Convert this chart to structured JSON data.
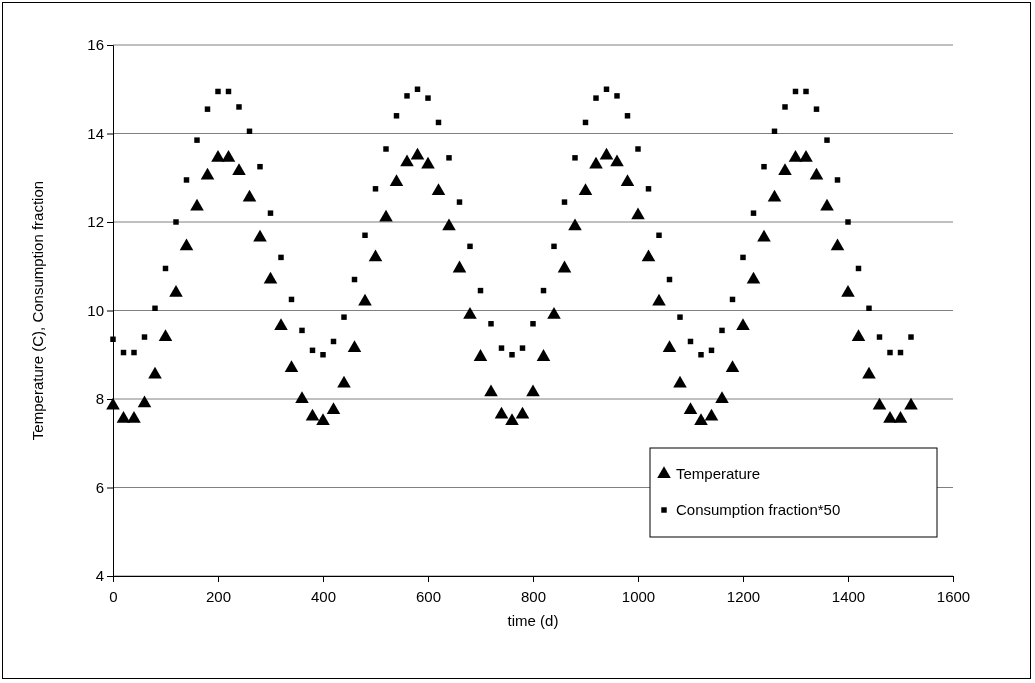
{
  "chart_data": {
    "type": "scatter",
    "xlabel": "time (d)",
    "ylabel": "Temperature (C), Consumption fraction",
    "x": [
      0,
      20,
      40,
      60,
      80,
      100,
      120,
      140,
      160,
      180,
      200,
      220,
      240,
      260,
      280,
      300,
      320,
      340,
      360,
      380,
      400,
      420,
      440,
      460,
      480,
      500,
      520,
      540,
      560,
      580,
      600,
      620,
      640,
      660,
      680,
      700,
      720,
      740,
      760,
      780,
      800,
      820,
      840,
      860,
      880,
      900,
      920,
      940,
      960,
      980,
      1000,
      1020,
      1040,
      1060,
      1080,
      1100,
      1120,
      1140,
      1160,
      1180,
      1200,
      1220,
      1240,
      1260,
      1280,
      1300,
      1320,
      1340,
      1360,
      1380,
      1400,
      1420,
      1440,
      1460,
      1480,
      1500,
      1520
    ],
    "series": [
      {
        "name": "Temperature",
        "color": "#000000",
        "marker": "triangle",
        "values": [
          7.85,
          7.55,
          7.55,
          7.9,
          8.55,
          9.4,
          10.4,
          11.45,
          12.35,
          13.05,
          13.45,
          13.45,
          13.15,
          12.55,
          11.65,
          10.7,
          9.65,
          8.7,
          8.0,
          7.6,
          7.5,
          7.75,
          8.35,
          9.15,
          10.2,
          11.2,
          12.1,
          12.9,
          13.35,
          13.5,
          13.3,
          12.7,
          11.9,
          10.95,
          9.9,
          8.95,
          8.15,
          7.65,
          7.5,
          7.65,
          8.15,
          8.95,
          9.9,
          10.95,
          11.9,
          12.7,
          13.3,
          13.5,
          13.35,
          12.9,
          12.15,
          11.2,
          10.2,
          9.15,
          8.35,
          7.75,
          7.5,
          7.6,
          8.0,
          8.7,
          9.65,
          10.7,
          11.65,
          12.55,
          13.15,
          13.45,
          13.45,
          13.05,
          12.35,
          11.45,
          10.4,
          9.4,
          8.55,
          7.85,
          7.55,
          7.55,
          7.85
        ]
      },
      {
        "name": "Consumption fraction*50",
        "color": "#000000",
        "marker": "square",
        "values": [
          9.35,
          9.05,
          9.05,
          9.4,
          10.05,
          10.95,
          12.0,
          12.95,
          13.85,
          14.55,
          14.95,
          14.95,
          14.6,
          14.05,
          13.25,
          12.2,
          11.2,
          10.25,
          9.55,
          9.1,
          9.0,
          9.3,
          9.85,
          10.7,
          11.7,
          12.75,
          13.65,
          14.4,
          14.85,
          15.0,
          14.8,
          14.25,
          13.45,
          12.45,
          11.45,
          10.45,
          9.7,
          9.15,
          9.0,
          9.15,
          9.7,
          10.45,
          11.45,
          12.45,
          13.45,
          14.25,
          14.8,
          15.0,
          14.85,
          14.4,
          13.65,
          12.75,
          11.7,
          10.7,
          9.85,
          9.3,
          9.0,
          9.1,
          9.55,
          10.25,
          11.2,
          12.2,
          13.25,
          14.05,
          14.6,
          14.95,
          14.95,
          14.55,
          13.85,
          12.95,
          12.0,
          10.95,
          10.05,
          9.4,
          9.05,
          9.05,
          9.4
        ]
      }
    ],
    "xlim": [
      0,
      1600
    ],
    "xticks": [
      0,
      200,
      400,
      600,
      800,
      1000,
      1200,
      1400,
      1600
    ],
    "ylim": [
      4,
      16
    ],
    "yticks": [
      4,
      6,
      8,
      10,
      12,
      14,
      16
    ],
    "grid": "y",
    "legend": "bottom right"
  }
}
